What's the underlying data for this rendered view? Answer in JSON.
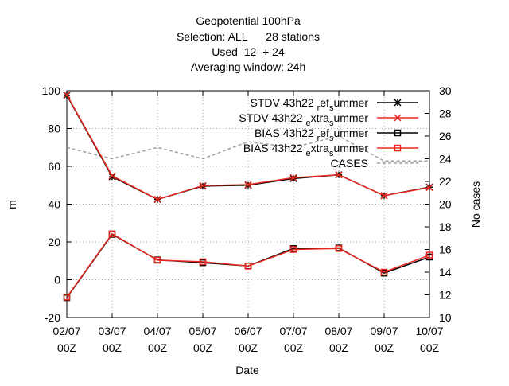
{
  "chart_data": {
    "type": "line",
    "title_lines": [
      "Geopotential 100hPa",
      "Selection: ALL      28 stations",
      "Used  12  + 24",
      "Averaging window: 24h"
    ],
    "xlabel": "Date",
    "ylabel": "m",
    "y2label": "No cases",
    "x_categories": [
      {
        "date": "02/07",
        "hour": "00Z"
      },
      {
        "date": "03/07",
        "hour": "00Z"
      },
      {
        "date": "04/07",
        "hour": "00Z"
      },
      {
        "date": "05/07",
        "hour": "00Z"
      },
      {
        "date": "06/07",
        "hour": "00Z"
      },
      {
        "date": "07/07",
        "hour": "00Z"
      },
      {
        "date": "08/07",
        "hour": "00Z"
      },
      {
        "date": "09/07",
        "hour": "00Z"
      },
      {
        "date": "10/07",
        "hour": "00Z"
      }
    ],
    "ylim": [
      -20,
      100
    ],
    "yticks": [
      -20,
      0,
      20,
      40,
      60,
      80,
      100
    ],
    "y2lim": [
      10,
      30
    ],
    "y2ticks": [
      10,
      12,
      14,
      16,
      18,
      20,
      22,
      24,
      26,
      28,
      30
    ],
    "grid": true,
    "legend_position": "top-right",
    "series": [
      {
        "name": "STDV 43h22_ref_summer",
        "label_parts": [
          "STDV 43h22",
          "r",
          "ef",
          "s",
          "ummer"
        ],
        "color": "#000000",
        "marker": "star",
        "axis": "y",
        "values": [
          97.5,
          54.5,
          42.5,
          49.5,
          50.0,
          53.5,
          55.5,
          44.5,
          49.0
        ]
      },
      {
        "name": "STDV 43h22_extra_summer",
        "label_parts": [
          "STDV 43h22",
          "e",
          "xtra",
          "s",
          "ummer"
        ],
        "color": "#e8281e",
        "marker": "x",
        "axis": "y",
        "values": [
          97.8,
          55.0,
          42.5,
          49.8,
          50.3,
          54.0,
          55.5,
          44.5,
          48.8
        ]
      },
      {
        "name": "BIAS 43h22_ref_summer",
        "label_parts": [
          "BIAS 43h22",
          "r",
          "ef",
          "s",
          "ummer"
        ],
        "color": "#000000",
        "marker": "square",
        "axis": "y",
        "values": [
          -9.5,
          24.0,
          10.5,
          9.0,
          7.3,
          16.5,
          16.8,
          3.5,
          12.0
        ]
      },
      {
        "name": "BIAS 43h22_extra_summer",
        "label_parts": [
          "BIAS 43h22",
          "e",
          "xtra",
          "s",
          "ummer"
        ],
        "color": "#e8281e",
        "marker": "square",
        "axis": "y",
        "values": [
          -9.2,
          24.3,
          10.3,
          9.5,
          7.2,
          16.0,
          16.5,
          4.0,
          13.0
        ]
      },
      {
        "name": "CASES",
        "label_parts": [
          "CASES"
        ],
        "color": "#a0a0a0",
        "marker": "none",
        "dashed": true,
        "axis": "y2",
        "values": [
          25.0,
          24.0,
          25.0,
          24.0,
          25.5,
          25.0,
          26.0,
          23.8,
          23.8
        ]
      }
    ]
  }
}
